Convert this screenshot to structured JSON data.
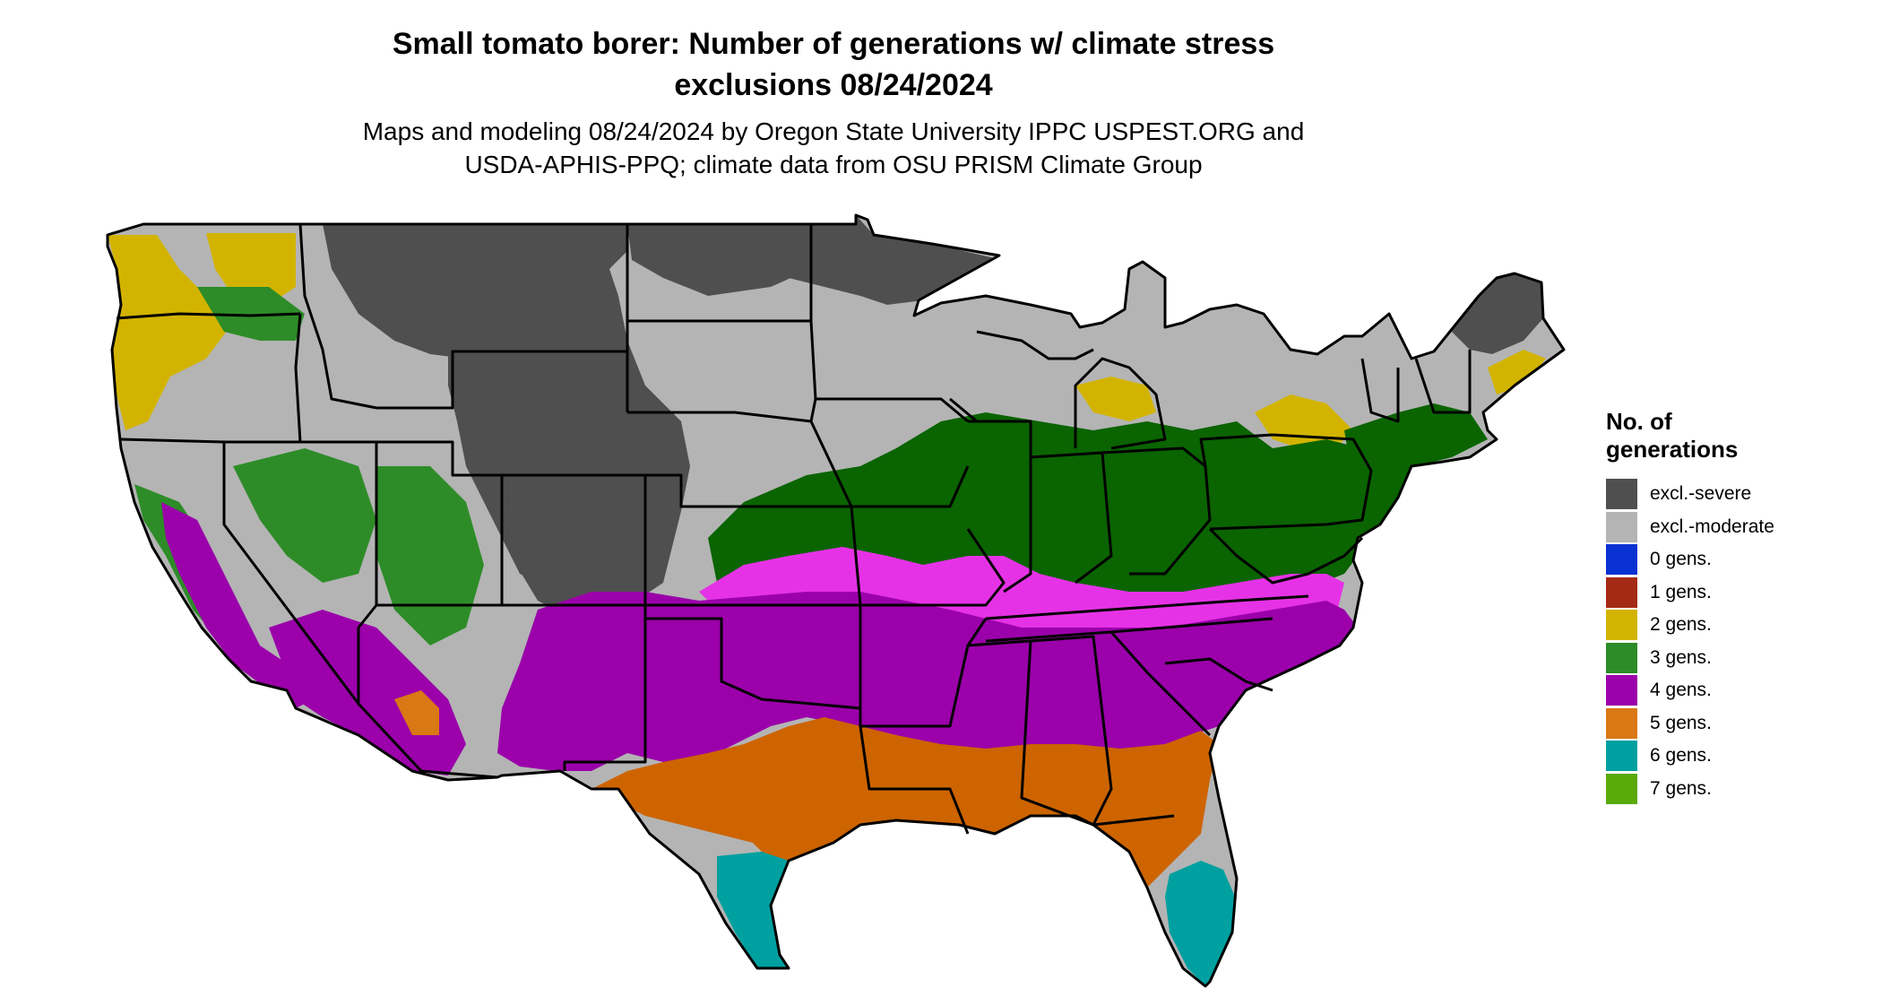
{
  "title": {
    "line1": "Small tomato borer: Number of generations w/ climate stress",
    "line2": "exclusions 08/24/2024"
  },
  "subtitle": {
    "line1": "Maps and modeling 08/24/2024 by Oregon State University IPPC USPEST.ORG and",
    "line2": "USDA-APHIS-PPQ; climate data from OSU PRISM Climate Group"
  },
  "legend": {
    "title_line1": "No. of",
    "title_line2": "generations",
    "items": [
      {
        "label": "excl.-severe",
        "color": "#4f4f4f"
      },
      {
        "label": "excl.-moderate",
        "color": "#b4b4b4"
      },
      {
        "label": "0 gens.",
        "color": "#0a32d2"
      },
      {
        "label": "1 gens.",
        "color": "#a52a14"
      },
      {
        "label": "2 gens.",
        "color": "#d2b400"
      },
      {
        "label": "3 gens.",
        "color": "#2d8c28"
      },
      {
        "label": "4 gens.",
        "color": "#9b00aa"
      },
      {
        "label": "5 gens.",
        "color": "#d97814"
      },
      {
        "label": "6 gens.",
        "color": "#00a0a0"
      },
      {
        "label": "7 gens.",
        "color": "#5aaa0a"
      }
    ]
  },
  "map_colors": {
    "dark_green": "#0a6400",
    "magenta": "#e632e6",
    "orange_dark": "#cd6400",
    "borders": "#000000"
  }
}
